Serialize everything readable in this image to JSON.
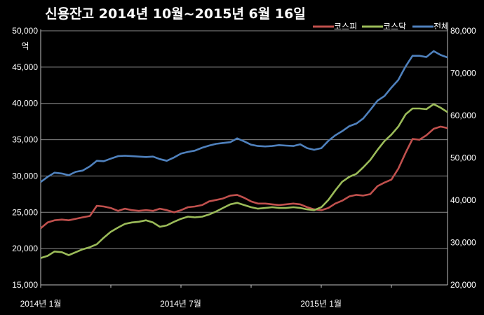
{
  "chart_data": {
    "type": "line",
    "title": "신용잔고 2014년 10월~2015년 6월 16일",
    "y_unit_left": "억",
    "x_tick_labels": [
      "2014년 1월",
      "2014년 7월",
      "2015년 1월"
    ],
    "x_tick_positions": [
      0,
      0.344,
      0.689
    ],
    "left_axis": {
      "ylim": [
        15000,
        50000
      ],
      "ticks": [
        15000,
        20000,
        25000,
        30000,
        35000,
        40000,
        45000,
        50000
      ],
      "tick_labels": [
        "15,000",
        "20,000",
        "25,000",
        "30,000",
        "35,000",
        "40,000",
        "45,000",
        "50,000"
      ]
    },
    "right_axis": {
      "ylim": [
        20000,
        80000
      ],
      "ticks": [
        20000,
        30000,
        40000,
        50000,
        60000,
        70000,
        80000
      ],
      "tick_labels": [
        "20,000",
        "30,000",
        "40,000",
        "50,000",
        "60,000",
        "70,000",
        "80,000"
      ]
    },
    "grid": true,
    "legend_position": "top-right",
    "series": [
      {
        "name": "코스피",
        "axis": "left",
        "color": "#c0504d",
        "x": [
          0,
          0.017,
          0.034,
          0.052,
          0.069,
          0.086,
          0.103,
          0.121,
          0.138,
          0.155,
          0.172,
          0.19,
          0.207,
          0.224,
          0.241,
          0.259,
          0.276,
          0.293,
          0.31,
          0.328,
          0.345,
          0.362,
          0.379,
          0.397,
          0.414,
          0.431,
          0.448,
          0.466,
          0.483,
          0.5,
          0.517,
          0.534,
          0.552,
          0.569,
          0.586,
          0.603,
          0.621,
          0.638,
          0.655,
          0.672,
          0.69,
          0.707,
          0.724,
          0.741,
          0.759,
          0.776,
          0.793,
          0.81,
          0.828,
          0.845,
          0.862,
          0.879,
          0.897,
          0.914,
          0.931,
          0.948,
          0.966,
          0.983,
          1
        ],
        "values": [
          22800,
          23600,
          23900,
          24000,
          23900,
          24100,
          24300,
          24500,
          25900,
          25800,
          25600,
          25200,
          25500,
          25300,
          25200,
          25300,
          25200,
          25500,
          25300,
          25000,
          25300,
          25700,
          25800,
          26000,
          26500,
          26700,
          26900,
          27300,
          27400,
          27000,
          26500,
          26200,
          26200,
          26100,
          26000,
          26100,
          26200,
          26100,
          25700,
          25400,
          25300,
          25600,
          26200,
          26600,
          27200,
          27400,
          27300,
          27500,
          28600,
          29100,
          29500,
          31000,
          33200,
          35100,
          35000,
          35600,
          36500,
          36800,
          36600
        ]
      },
      {
        "name": "코스닥",
        "axis": "left",
        "color": "#9bbb59",
        "x": [
          0,
          0.017,
          0.034,
          0.052,
          0.069,
          0.086,
          0.103,
          0.121,
          0.138,
          0.155,
          0.172,
          0.19,
          0.207,
          0.224,
          0.241,
          0.259,
          0.276,
          0.293,
          0.31,
          0.328,
          0.345,
          0.362,
          0.379,
          0.397,
          0.414,
          0.431,
          0.448,
          0.466,
          0.483,
          0.5,
          0.517,
          0.534,
          0.552,
          0.569,
          0.586,
          0.603,
          0.621,
          0.638,
          0.655,
          0.672,
          0.69,
          0.707,
          0.724,
          0.741,
          0.759,
          0.776,
          0.793,
          0.81,
          0.828,
          0.845,
          0.862,
          0.879,
          0.897,
          0.914,
          0.931,
          0.948,
          0.966,
          0.983,
          1
        ],
        "values": [
          18700,
          19000,
          19600,
          19500,
          19100,
          19500,
          19900,
          20200,
          20600,
          21500,
          22300,
          22900,
          23400,
          23600,
          23700,
          23900,
          23600,
          23000,
          23200,
          23700,
          24100,
          24400,
          24300,
          24400,
          24700,
          25100,
          25600,
          26100,
          26300,
          26000,
          25700,
          25500,
          25600,
          25700,
          25600,
          25600,
          25700,
          25600,
          25400,
          25300,
          25700,
          26700,
          28000,
          29200,
          29900,
          30300,
          31200,
          32200,
          33600,
          34800,
          35700,
          36800,
          38500,
          39300,
          39300,
          39200,
          39900,
          39400,
          38800
        ]
      },
      {
        "name": "전체",
        "axis": "right",
        "color": "#4f81bd",
        "x": [
          0,
          0.017,
          0.034,
          0.052,
          0.069,
          0.086,
          0.103,
          0.121,
          0.138,
          0.155,
          0.172,
          0.19,
          0.207,
          0.224,
          0.241,
          0.259,
          0.276,
          0.293,
          0.31,
          0.328,
          0.345,
          0.362,
          0.379,
          0.397,
          0.414,
          0.431,
          0.448,
          0.466,
          0.483,
          0.5,
          0.517,
          0.534,
          0.552,
          0.569,
          0.586,
          0.603,
          0.621,
          0.638,
          0.655,
          0.672,
          0.69,
          0.707,
          0.724,
          0.741,
          0.759,
          0.776,
          0.793,
          0.81,
          0.828,
          0.845,
          0.862,
          0.879,
          0.897,
          0.914,
          0.931,
          0.948,
          0.966,
          0.983,
          1
        ],
        "values": [
          44300,
          45500,
          46500,
          46300,
          45900,
          46700,
          47000,
          48000,
          49300,
          49200,
          49800,
          50400,
          50500,
          50400,
          50300,
          50200,
          50300,
          49700,
          49300,
          50100,
          51000,
          51400,
          51700,
          52400,
          52900,
          53300,
          53500,
          53700,
          54600,
          53900,
          53100,
          52800,
          52700,
          52800,
          53000,
          52900,
          52800,
          53200,
          52300,
          51900,
          52300,
          54000,
          55300,
          56300,
          57500,
          58100,
          59300,
          61300,
          63500,
          64600,
          66600,
          68400,
          71600,
          74100,
          74100,
          73800,
          75200,
          74300,
          73700
        ]
      }
    ]
  }
}
